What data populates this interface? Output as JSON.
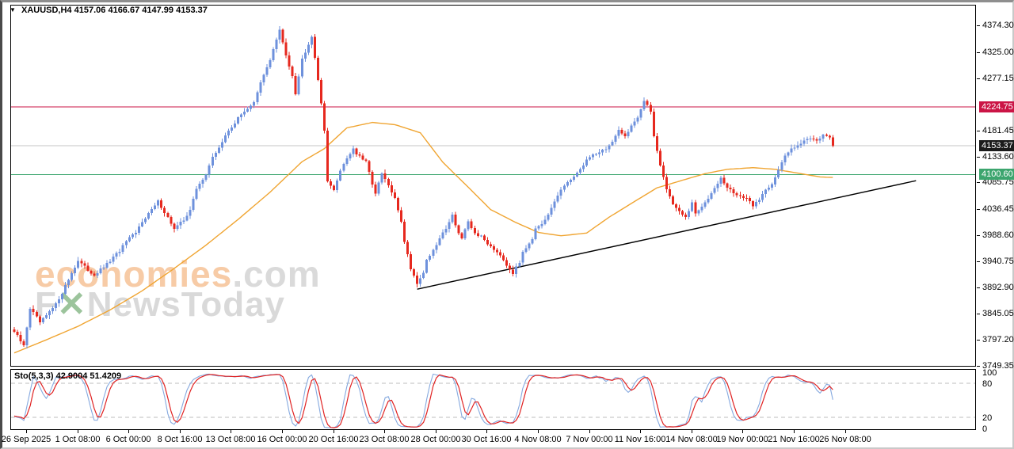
{
  "info_bar": {
    "symbol": "XAUUSD,H4",
    "open": "4157.06",
    "high": "4166.67",
    "low": "4147.99",
    "close": "4153.37"
  },
  "icons": {
    "dropdown": "▼"
  },
  "watermark": {
    "brand": "economies",
    "domain": ".com",
    "news_f": "F",
    "news_x": "✕",
    "news_rest": "NewsToday"
  },
  "chart_data": {
    "type": "candlestick",
    "symbol": "XAUUSD",
    "timeframe": "H4",
    "title": "XAUUSD,H4  4157.06 4166.67 4147.99 4153.37",
    "y_axis_ticks": [
      {
        "label": "4374.30",
        "price": 4374.3
      },
      {
        "label": "4325.00",
        "price": 4325.0
      },
      {
        "label": "4277.15",
        "price": 4277.15
      },
      {
        "label": "4181.45",
        "price": 4181.45
      },
      {
        "label": "4133.60",
        "price": 4133.6
      },
      {
        "label": "4085.75",
        "price": 4085.75
      },
      {
        "label": "4036.45",
        "price": 4036.45
      },
      {
        "label": "3988.60",
        "price": 3988.6
      },
      {
        "label": "3940.75",
        "price": 3940.75
      },
      {
        "label": "3892.90",
        "price": 3892.9
      },
      {
        "label": "3845.05",
        "price": 3845.05
      },
      {
        "label": "3797.20",
        "price": 3797.2
      },
      {
        "label": "3749.35",
        "price": 3749.35
      }
    ],
    "levels": [
      {
        "id": "resistance-line",
        "label": "4224.75",
        "price": 4224.75,
        "line_color": "#cb1445",
        "label_bg": "#cb1445"
      },
      {
        "id": "current-price-line",
        "label": "4153.37",
        "price": 4153.37,
        "line_color": "#c4c4c4",
        "label_bg": "#1b1b1b"
      },
      {
        "id": "support-line",
        "label": "4100.60",
        "price": 4100.6,
        "line_color": "#3ca56e",
        "label_bg": "#3ca56e"
      }
    ],
    "trendline": {
      "from_bar": 126,
      "from_price": 3890,
      "to_bar": 282,
      "to_price": 4089,
      "color": "#000000"
    },
    "candles": {
      "count": 257,
      "up_color": "#6e91dc",
      "down_color": "#e6281e",
      "close_anchors": [
        [
          0,
          3812
        ],
        [
          3,
          3786
        ],
        [
          5,
          3855
        ],
        [
          8,
          3829
        ],
        [
          10,
          3841
        ],
        [
          13,
          3862
        ],
        [
          15,
          3884
        ],
        [
          18,
          3920
        ],
        [
          20,
          3942
        ],
        [
          23,
          3925
        ],
        [
          25,
          3916
        ],
        [
          28,
          3930
        ],
        [
          30,
          3942
        ],
        [
          33,
          3960
        ],
        [
          35,
          3978
        ],
        [
          38,
          3993
        ],
        [
          40,
          4015
        ],
        [
          43,
          4036
        ],
        [
          45,
          4051
        ],
        [
          48,
          4022
        ],
        [
          50,
          4000
        ],
        [
          53,
          4017
        ],
        [
          55,
          4036
        ],
        [
          57,
          4073
        ],
        [
          60,
          4102
        ],
        [
          62,
          4131
        ],
        [
          65,
          4160
        ],
        [
          67,
          4181
        ],
        [
          70,
          4203
        ],
        [
          72,
          4217
        ],
        [
          75,
          4232
        ],
        [
          77,
          4268
        ],
        [
          80,
          4312
        ],
        [
          82,
          4348
        ],
        [
          83,
          4365
        ],
        [
          85,
          4319
        ],
        [
          87,
          4283
        ],
        [
          88,
          4250
        ],
        [
          90,
          4312
        ],
        [
          92,
          4341
        ],
        [
          93,
          4355
        ],
        [
          95,
          4276
        ],
        [
          97,
          4181
        ],
        [
          98,
          4090
        ],
        [
          100,
          4070
        ],
        [
          102,
          4109
        ],
        [
          104,
          4131
        ],
        [
          106,
          4148
        ],
        [
          107,
          4138
        ],
        [
          110,
          4123
        ],
        [
          111,
          4104
        ],
        [
          113,
          4065
        ],
        [
          115,
          4102
        ],
        [
          117,
          4080
        ],
        [
          119,
          4055
        ],
        [
          121,
          4015
        ],
        [
          122,
          3978
        ],
        [
          124,
          3928
        ],
        [
          126,
          3902
        ],
        [
          128,
          3920
        ],
        [
          129,
          3945
        ],
        [
          131,
          3960
        ],
        [
          133,
          3983
        ],
        [
          135,
          4003
        ],
        [
          137,
          4026
        ],
        [
          139,
          3993
        ],
        [
          140,
          3983
        ],
        [
          142,
          4012
        ],
        [
          144,
          3993
        ],
        [
          146,
          3986
        ],
        [
          148,
          3974
        ],
        [
          150,
          3964
        ],
        [
          152,
          3954
        ],
        [
          154,
          3935
        ],
        [
          156,
          3920
        ],
        [
          158,
          3939
        ],
        [
          159,
          3960
        ],
        [
          162,
          3983
        ],
        [
          163,
          4000
        ],
        [
          165,
          4007
        ],
        [
          167,
          4026
        ],
        [
          169,
          4051
        ],
        [
          171,
          4073
        ],
        [
          173,
          4084
        ],
        [
          175,
          4099
        ],
        [
          177,
          4109
        ],
        [
          179,
          4128
        ],
        [
          181,
          4137
        ],
        [
          183,
          4142
        ],
        [
          185,
          4148
        ],
        [
          187,
          4160
        ],
        [
          189,
          4180
        ],
        [
          191,
          4171
        ],
        [
          193,
          4191
        ],
        [
          195,
          4206
        ],
        [
          197,
          4235
        ],
        [
          199,
          4217
        ],
        [
          200,
          4171
        ],
        [
          202,
          4119
        ],
        [
          204,
          4073
        ],
        [
          206,
          4047
        ],
        [
          208,
          4032
        ],
        [
          210,
          4021
        ],
        [
          212,
          4047
        ],
        [
          213,
          4029
        ],
        [
          215,
          4040
        ],
        [
          217,
          4058
        ],
        [
          219,
          4078
        ],
        [
          221,
          4093
        ],
        [
          223,
          4076
        ],
        [
          225,
          4067
        ],
        [
          227,
          4061
        ],
        [
          229,
          4055
        ],
        [
          231,
          4044
        ],
        [
          233,
          4055
        ],
        [
          235,
          4073
        ],
        [
          237,
          4084
        ],
        [
          239,
          4109
        ],
        [
          241,
          4134
        ],
        [
          243,
          4148
        ],
        [
          245,
          4156
        ],
        [
          247,
          4162
        ],
        [
          249,
          4168
        ],
        [
          251,
          4164
        ],
        [
          253,
          4173
        ],
        [
          255,
          4166
        ],
        [
          256,
          4153.37
        ]
      ]
    },
    "moving_average": {
      "color": "#f0a532",
      "anchors": [
        [
          0,
          3773
        ],
        [
          10,
          3797
        ],
        [
          20,
          3822
        ],
        [
          30,
          3852
        ],
        [
          40,
          3887
        ],
        [
          50,
          3928
        ],
        [
          60,
          3971
        ],
        [
          70,
          4018
        ],
        [
          80,
          4068
        ],
        [
          90,
          4124
        ],
        [
          97,
          4148
        ],
        [
          104,
          4186
        ],
        [
          112,
          4196
        ],
        [
          119,
          4192
        ],
        [
          127,
          4177
        ],
        [
          134,
          4123
        ],
        [
          142,
          4077
        ],
        [
          149,
          4036
        ],
        [
          157,
          4012
        ],
        [
          164,
          3994
        ],
        [
          171,
          3988
        ],
        [
          179,
          3993
        ],
        [
          186,
          4022
        ],
        [
          194,
          4051
        ],
        [
          201,
          4076
        ],
        [
          209,
          4090
        ],
        [
          216,
          4102
        ],
        [
          223,
          4110
        ],
        [
          231,
          4113
        ],
        [
          238,
          4110
        ],
        [
          246,
          4102
        ],
        [
          252,
          4096
        ],
        [
          256,
          4095
        ]
      ]
    },
    "stochastic": {
      "name": "Sto(5,3,3)",
      "k": "42.9004",
      "d": "51.4209",
      "k_color": "#85a9df",
      "d_color": "#e02222",
      "period_k": 5,
      "slowing": 3,
      "period_d": 3,
      "overbought": 80,
      "oversold": 20,
      "scale_labels": [
        {
          "label": "100",
          "value": 100
        },
        {
          "label": "80",
          "value": 80
        },
        {
          "label": "20",
          "value": 20
        },
        {
          "label": "0",
          "value": 0
        }
      ]
    },
    "x_axis": {
      "labels": [
        "26 Sep 2025",
        "1 Oct 08:00",
        "6 Oct 00:00",
        "8 Oct 16:00",
        "13 Oct 08:00",
        "16 Oct 00:00",
        "20 Oct 16:00",
        "23 Oct 08:00",
        "28 Oct 00:00",
        "30 Oct 16:00",
        "4 Nov 08:00",
        "7 Nov 00:00",
        "11 Nov 16:00",
        "14 Nov 08:00",
        "19 Nov 00:00",
        "21 Nov 16:00",
        "26 Nov 08:00"
      ]
    }
  }
}
